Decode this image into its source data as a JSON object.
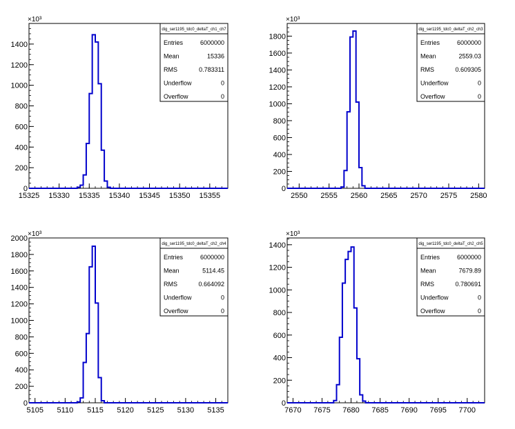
{
  "chart_data": [
    {
      "type": "histogram",
      "stats": {
        "name": "dig_ser1195_tdc0_deltaT_ch1_ch7",
        "entries": "6000000",
        "mean": "15336",
        "rms": "0.783311",
        "underflow": "0",
        "overflow": "0"
      },
      "labels": {
        "entries": "Entries",
        "mean": "Mean",
        "rms": "RMS",
        "underflow": "Underflow",
        "overflow": "Overflow"
      },
      "xlim": [
        15325,
        15358
      ],
      "xticks": [
        15325,
        15330,
        15335,
        15340,
        15345,
        15350,
        15355
      ],
      "ylim": [
        0,
        1600
      ],
      "yticks": [
        0,
        200,
        400,
        600,
        800,
        1000,
        1200,
        1400
      ],
      "y_multiplier": "×10³",
      "line_color": "#0000cc",
      "bins": [
        {
          "x": 15333.0,
          "y": 10
        },
        {
          "x": 15333.5,
          "y": 30
        },
        {
          "x": 15334.0,
          "y": 130
        },
        {
          "x": 15334.5,
          "y": 435
        },
        {
          "x": 15335.0,
          "y": 920
        },
        {
          "x": 15335.5,
          "y": 1490
        },
        {
          "x": 15336.0,
          "y": 1420
        },
        {
          "x": 15336.5,
          "y": 1015
        },
        {
          "x": 15337.0,
          "y": 370
        },
        {
          "x": 15337.5,
          "y": 70
        },
        {
          "x": 15338.0,
          "y": 10
        }
      ]
    },
    {
      "type": "histogram",
      "stats": {
        "name": "dig_ser1195_tdc0_deltaT_ch2_ch3",
        "entries": "6000000",
        "mean": "2559.03",
        "rms": "0.609305",
        "underflow": "0",
        "overflow": "0"
      },
      "labels": {
        "entries": "Entries",
        "mean": "Mean",
        "rms": "RMS",
        "underflow": "Underflow",
        "overflow": "Overflow"
      },
      "xlim": [
        2548,
        2581
      ],
      "xticks": [
        2550,
        2555,
        2560,
        2565,
        2570,
        2575,
        2580
      ],
      "ylim": [
        0,
        1950
      ],
      "yticks": [
        0,
        200,
        400,
        600,
        800,
        1000,
        1200,
        1400,
        1600,
        1800
      ],
      "y_multiplier": "×10³",
      "line_color": "#0000cc",
      "bins": [
        {
          "x": 2557.0,
          "y": 15
        },
        {
          "x": 2557.5,
          "y": 210
        },
        {
          "x": 2558.0,
          "y": 905
        },
        {
          "x": 2558.5,
          "y": 1790
        },
        {
          "x": 2559.0,
          "y": 1860
        },
        {
          "x": 2559.5,
          "y": 1020
        },
        {
          "x": 2560.0,
          "y": 245
        },
        {
          "x": 2560.5,
          "y": 30
        }
      ]
    },
    {
      "type": "histogram",
      "stats": {
        "name": "dig_ser1195_tdc0_deltaT_ch2_ch4",
        "entries": "6000000",
        "mean": "5114.45",
        "rms": "0.664092",
        "underflow": "0",
        "overflow": "0"
      },
      "labels": {
        "entries": "Entries",
        "mean": "Mean",
        "rms": "RMS",
        "underflow": "Underflow",
        "overflow": "Overflow"
      },
      "xlim": [
        5104,
        5137
      ],
      "xticks": [
        5105,
        5110,
        5115,
        5120,
        5125,
        5130,
        5135
      ],
      "ylim": [
        0,
        2000
      ],
      "yticks": [
        0,
        200,
        400,
        600,
        800,
        1000,
        1200,
        1400,
        1600,
        1800,
        2000
      ],
      "y_multiplier": "×10³",
      "line_color": "#0000cc",
      "bins": [
        {
          "x": 5112.0,
          "y": 10
        },
        {
          "x": 5112.5,
          "y": 60
        },
        {
          "x": 5113.0,
          "y": 490
        },
        {
          "x": 5113.5,
          "y": 840
        },
        {
          "x": 5114.0,
          "y": 1650
        },
        {
          "x": 5114.5,
          "y": 1900
        },
        {
          "x": 5115.0,
          "y": 1210
        },
        {
          "x": 5115.5,
          "y": 305
        },
        {
          "x": 5116.0,
          "y": 25
        }
      ]
    },
    {
      "type": "histogram",
      "stats": {
        "name": "dig_ser1195_tdc0_deltaT_ch2_ch5",
        "entries": "6000000",
        "mean": "7679.89",
        "rms": "0.780691",
        "underflow": "0",
        "overflow": "0"
      },
      "labels": {
        "entries": "Entries",
        "mean": "Mean",
        "rms": "RMS",
        "underflow": "Underflow",
        "overflow": "Overflow"
      },
      "xlim": [
        7669,
        7703
      ],
      "xticks": [
        7670,
        7675,
        7680,
        7685,
        7690,
        7695,
        7700
      ],
      "ylim": [
        0,
        1460
      ],
      "yticks": [
        0,
        200,
        400,
        600,
        800,
        1000,
        1200,
        1400
      ],
      "y_multiplier": "×10³",
      "line_color": "#0000cc",
      "bins": [
        {
          "x": 7677.0,
          "y": 20
        },
        {
          "x": 7677.5,
          "y": 160
        },
        {
          "x": 7678.0,
          "y": 580
        },
        {
          "x": 7678.5,
          "y": 1060
        },
        {
          "x": 7679.0,
          "y": 1270
        },
        {
          "x": 7679.5,
          "y": 1340
        },
        {
          "x": 7680.0,
          "y": 1380
        },
        {
          "x": 7680.5,
          "y": 840
        },
        {
          "x": 7681.0,
          "y": 390
        },
        {
          "x": 7681.5,
          "y": 70
        },
        {
          "x": 7682.0,
          "y": 15
        }
      ]
    }
  ]
}
